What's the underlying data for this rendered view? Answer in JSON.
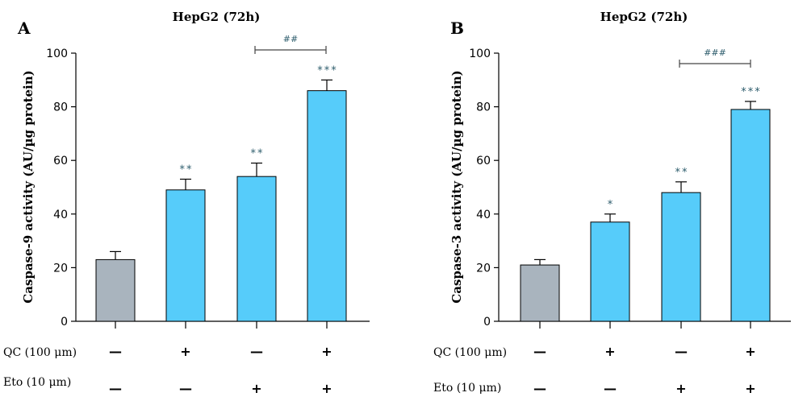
{
  "chart_data": [
    {
      "type": "bar",
      "panel": "A",
      "title": "HepG2 (72h)",
      "ylabel": "Caspase-9 activity (AU/µg protein)",
      "ylim": [
        0,
        100
      ],
      "yticks": [
        0,
        20,
        40,
        60,
        80,
        100
      ],
      "values": [
        23,
        49,
        54,
        86
      ],
      "errors": [
        3,
        4,
        5,
        4
      ],
      "colors": [
        "#a9b4be",
        "#56ccfa",
        "#56ccfa",
        "#56ccfa"
      ],
      "significance": [
        "",
        "**",
        "**",
        "***"
      ],
      "bracket": {
        "from": 2,
        "to": 3,
        "label": "##"
      },
      "rows": [
        {
          "label": "QC (100 μm)",
          "signs": [
            "—",
            "+",
            "—",
            "+"
          ]
        },
        {
          "label": "Eto (10 μm)",
          "signs": [
            "—",
            "—",
            "+",
            "+"
          ]
        }
      ]
    },
    {
      "type": "bar",
      "panel": "B",
      "title": "HepG2 (72h)",
      "ylabel": "Caspase-3 activity (AU/µg protein)",
      "ylim": [
        0,
        100
      ],
      "yticks": [
        0,
        20,
        40,
        60,
        80,
        100
      ],
      "values": [
        21,
        37,
        48,
        79
      ],
      "errors": [
        2,
        3,
        4,
        3
      ],
      "colors": [
        "#a9b4be",
        "#56ccfa",
        "#56ccfa",
        "#56ccfa"
      ],
      "significance": [
        "",
        "*",
        "**",
        "***"
      ],
      "bracket": {
        "from": 2,
        "to": 3,
        "label": "###"
      },
      "rows": [
        {
          "label": "QC (100 μm)",
          "signs": [
            "—",
            "+",
            "—",
            "+"
          ]
        },
        {
          "label": "Eto (10 μm)",
          "signs": [
            "—",
            "—",
            "+",
            "+"
          ]
        }
      ]
    }
  ]
}
